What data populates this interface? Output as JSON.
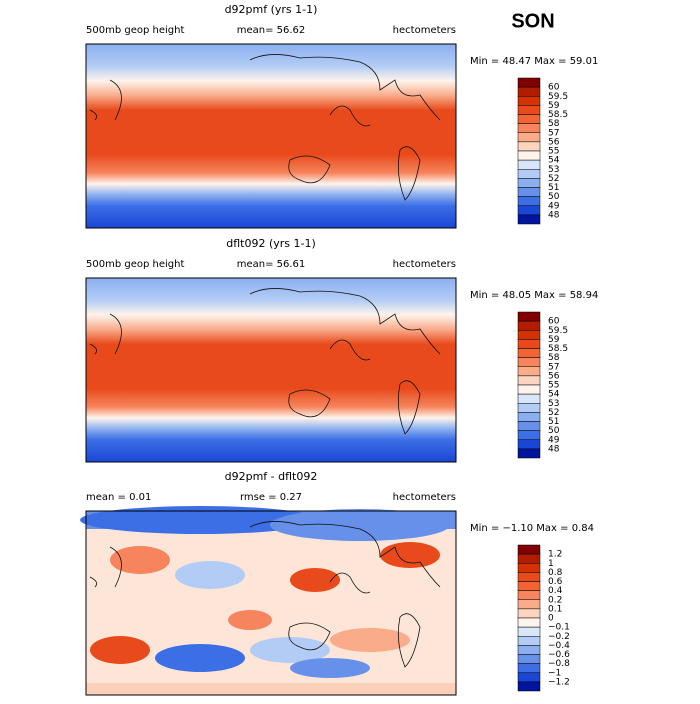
{
  "season": "SON",
  "panels": [
    {
      "title": "d92pmf (yrs 1-1)",
      "left_label": "500mb geop height",
      "center_label": "mean=  56.62",
      "right_label": "hectometers",
      "stats": "Min =  48.47 Max =  59.01",
      "colorbar": {
        "levels": [
          "60",
          "59.5",
          "59",
          "58.5",
          "58",
          "57",
          "56",
          "55",
          "54",
          "53",
          "52",
          "51",
          "50",
          "49",
          "48"
        ],
        "colors": [
          "#800000",
          "#b21c00",
          "#d43200",
          "#e84a1c",
          "#f26434",
          "#f6845c",
          "#f9ab8a",
          "#fcd5c0",
          "#fef4ec",
          "#d8e6fa",
          "#b2ccf5",
          "#8caff0",
          "#6690ea",
          "#3c6ee6",
          "#1a46d6",
          "#00149e"
        ]
      }
    },
    {
      "title": "dflt092 (yrs 1-1)",
      "left_label": "500mb geop height",
      "center_label": "mean=  56.61",
      "right_label": "hectometers",
      "stats": "Min =  48.05 Max =  58.94",
      "colorbar": {
        "levels": [
          "60",
          "59.5",
          "59",
          "58.5",
          "58",
          "57",
          "56",
          "55",
          "54",
          "53",
          "52",
          "51",
          "50",
          "49",
          "48"
        ],
        "colors": [
          "#800000",
          "#b21c00",
          "#d43200",
          "#e84a1c",
          "#f26434",
          "#f6845c",
          "#f9ab8a",
          "#fcd5c0",
          "#fef4ec",
          "#d8e6fa",
          "#b2ccf5",
          "#8caff0",
          "#6690ea",
          "#3c6ee6",
          "#1a46d6",
          "#00149e"
        ]
      }
    },
    {
      "title": "d92pmf - dflt092",
      "left_label": "mean =    0.01",
      "center_label": "rmse =    0.27",
      "right_label": "hectometers",
      "stats": "Min =  −1.10 Max =   0.84",
      "colorbar": {
        "levels": [
          "1.2",
          "1",
          "0.8",
          "0.6",
          "0.4",
          "0.2",
          "0.1",
          "0",
          "−0.1",
          "−0.2",
          "−0.4",
          "−0.6",
          "−0.8",
          "−1",
          "−1.2"
        ],
        "colors": [
          "#800000",
          "#b21c00",
          "#d43200",
          "#e84a1c",
          "#f26434",
          "#f6845c",
          "#f9ab8a",
          "#fcd5c0",
          "#fef4ec",
          "#d8e6fa",
          "#b2ccf5",
          "#8caff0",
          "#6690ea",
          "#3c6ee6",
          "#1a46d6",
          "#00149e"
        ]
      }
    }
  ]
}
